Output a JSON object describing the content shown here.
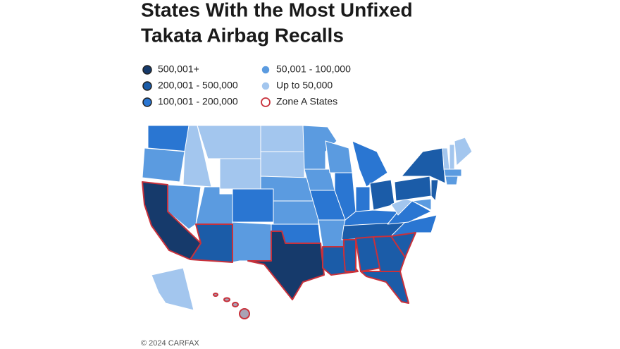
{
  "header": {
    "title": [
      "States With the Most Unfixed",
      "Takata Airbag Recalls"
    ]
  },
  "legend": [
    "500,001+",
    "200,001 - 500,000",
    "100,001 - 200,000",
    "50,001 - 100,000",
    "Up to 50,000",
    "Zone A States"
  ],
  "footer": {
    "credit": "© 2024 CARFAX"
  }
}
